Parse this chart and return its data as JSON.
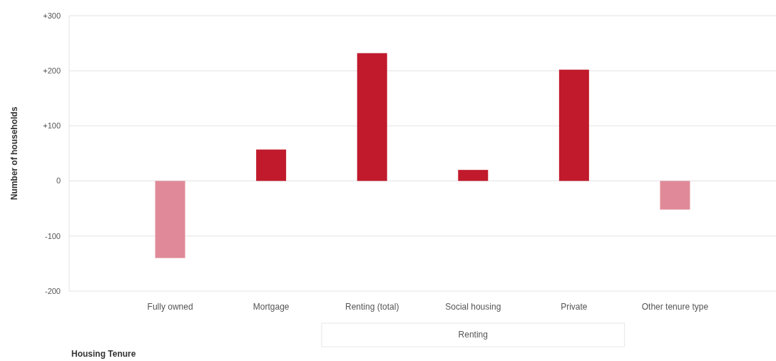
{
  "chart_data": {
    "type": "bar",
    "ylabel": "Number of households",
    "xlabel": "Housing Tenure",
    "categories": [
      "Fully owned",
      "Mortgage",
      "Renting (total)",
      "Social housing",
      "Private",
      "Other tenure type"
    ],
    "values": [
      -140,
      57,
      232,
      20,
      202,
      -52
    ],
    "colors": [
      "#e08a99",
      "#c01a2c",
      "#c01a2c",
      "#c01a2c",
      "#c01a2c",
      "#e08a99"
    ],
    "ylim": [
      -200,
      300
    ],
    "yticks": [
      {
        "value": 300,
        "label": "+300"
      },
      {
        "value": 200,
        "label": "+200"
      },
      {
        "value": 100,
        "label": "+100"
      },
      0,
      -100,
      -200
    ],
    "grid": "y",
    "annotations": [
      "Renting"
    ]
  }
}
